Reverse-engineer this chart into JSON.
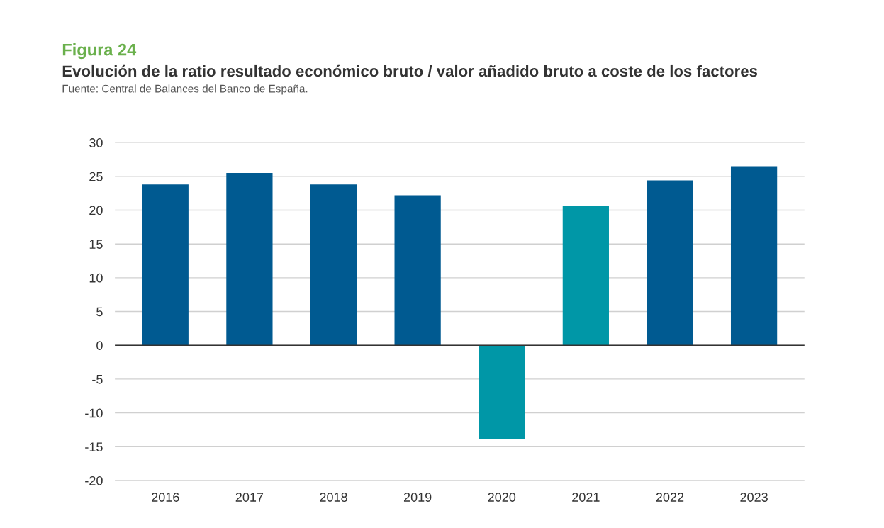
{
  "chart_data": {
    "type": "bar",
    "title": "Figura 24",
    "subtitle": "Evolución de la ratio resultado económico bruto / valor añadido bruto a coste de los factores",
    "annotations": [
      "Fuente: Central de Balances del Banco de España."
    ],
    "categories": [
      "2016",
      "2017",
      "2018",
      "2019",
      "2020",
      "2021",
      "2022",
      "2023"
    ],
    "values": [
      23.8,
      25.5,
      23.8,
      22.2,
      -13.9,
      20.6,
      24.4,
      26.5
    ],
    "colors": [
      "#005a91",
      "#005a91",
      "#005a91",
      "#005a91",
      "#0097a7",
      "#0097a7",
      "#005a91",
      "#005a91"
    ],
    "ylim": [
      -20,
      30
    ],
    "yticks": [
      -20,
      -15,
      -10,
      -5,
      0,
      5,
      10,
      15,
      20,
      25,
      30
    ],
    "grid": "y"
  }
}
